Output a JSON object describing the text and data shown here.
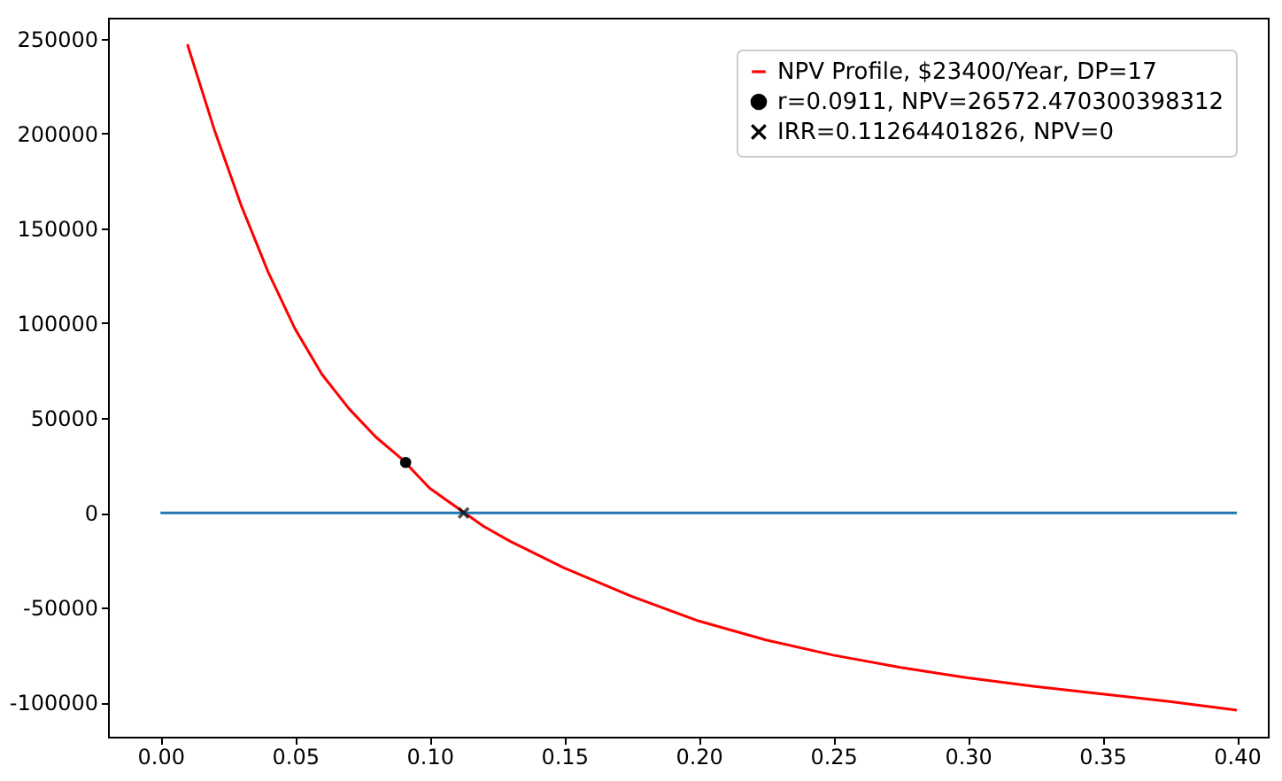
{
  "chart_data": {
    "type": "line",
    "legend": "top right",
    "grid": false,
    "xlim": [
      -0.0195,
      0.4115
    ],
    "ylim": [
      -118000,
      261000
    ],
    "xticks": [
      {
        "value": 0,
        "label": "0.00"
      },
      {
        "value": 0.05,
        "label": "0.05"
      },
      {
        "value": 0.1,
        "label": "0.10"
      },
      {
        "value": 0.15,
        "label": "0.15"
      },
      {
        "value": 0.2,
        "label": "0.20"
      },
      {
        "value": 0.25,
        "label": "0.25"
      },
      {
        "value": 0.3,
        "label": "0.30"
      },
      {
        "value": 0.35,
        "label": "0.35"
      },
      {
        "value": 0.4,
        "label": "0.40"
      }
    ],
    "yticks": [
      -100000,
      -50000,
      0,
      50000,
      100000,
      150000,
      200000,
      250000
    ],
    "series": [
      {
        "name": "NPV Profile, $23400/Year, DP=17",
        "color": "#ff0000",
        "x": [
          0.01,
          0.02,
          0.03,
          0.04,
          0.05,
          0.06,
          0.07,
          0.08,
          0.09,
          0.1,
          0.11,
          0.12,
          0.13,
          0.14,
          0.15,
          0.175,
          0.2,
          0.225,
          0.25,
          0.275,
          0.3,
          0.325,
          0.35,
          0.375,
          0.4
        ],
        "values": [
          247000,
          202000,
          162000,
          127000,
          97000,
          73000,
          55000,
          40000,
          28000,
          13000,
          3000,
          -7000,
          -15000,
          -22000,
          -29000,
          -44000,
          -57000,
          -67000,
          -75000,
          -81500,
          -87000,
          -91500,
          -95500,
          -99500,
          -104000
        ]
      },
      {
        "color": "#1f77b4",
        "x": [
          0,
          0.4
        ],
        "values": [
          0,
          0
        ]
      },
      {
        "name": "r=0.0911, NPV=26572.470300398312",
        "type": "scatter",
        "color": "#000000",
        "marker": "circle",
        "x": [
          0.0911
        ],
        "values": [
          26572
        ]
      },
      {
        "name": "IRR=0.11264401826, NPV=0",
        "type": "scatter",
        "color": "#000000",
        "marker": "cross",
        "x": [
          0.11264401826
        ],
        "values": [
          0
        ]
      }
    ]
  }
}
